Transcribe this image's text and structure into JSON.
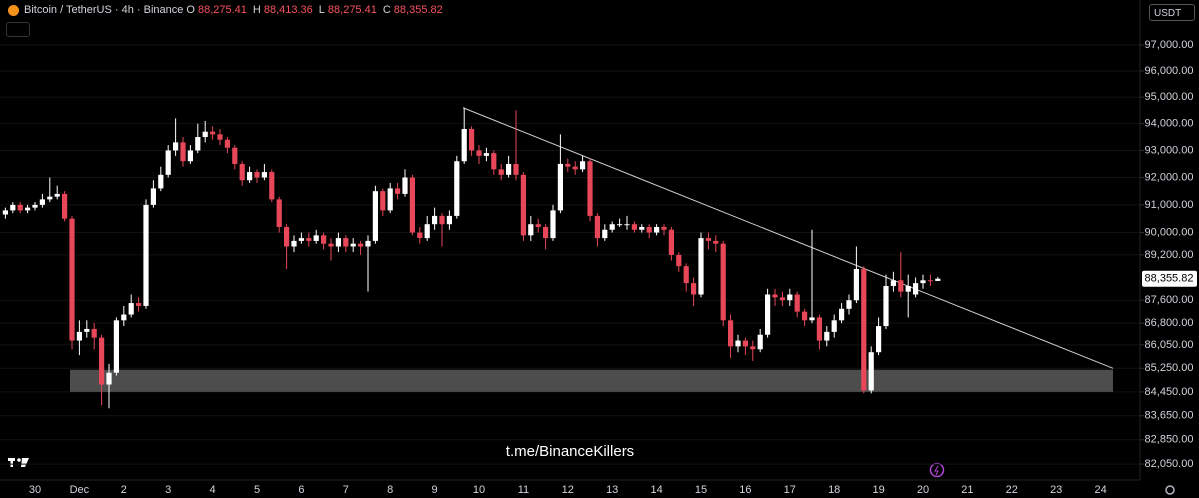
{
  "chart_data": {
    "type": "candlestick",
    "title": "Bitcoin / TetherUS · 4h · Binance",
    "ohlc_keys": [
      "O",
      "H",
      "L",
      "C"
    ],
    "ohlc_labels": [
      "88,275.41",
      "88,413.36",
      "88,275.41",
      "88,355.82"
    ],
    "currency": "USDT",
    "watermark": "t.me/BinanceKillers",
    "log_scale": true,
    "grid": true,
    "up_color": "#ffffff",
    "down_color": "#e8475a",
    "ylim": [
      81530,
      98760
    ],
    "yticks": [
      {
        "value": 97000,
        "label": "97,000.00"
      },
      {
        "value": 96000,
        "label": "96,000.00"
      },
      {
        "value": 95000,
        "label": "95,000.00"
      },
      {
        "value": 94000,
        "label": "94,000.00"
      },
      {
        "value": 93000,
        "label": "93,000.00"
      },
      {
        "value": 92000,
        "label": "92,000.00"
      },
      {
        "value": 91000,
        "label": "91,000.00"
      },
      {
        "value": 90000,
        "label": "90,000.00"
      },
      {
        "value": 89200,
        "label": "89,200.00"
      },
      {
        "value": 87600,
        "label": "87,600.00"
      },
      {
        "value": 86800,
        "label": "86,800.00"
      },
      {
        "value": 86050,
        "label": "86,050.00"
      },
      {
        "value": 85250,
        "label": "85,250.00"
      },
      {
        "value": 84450,
        "label": "84,450.00"
      },
      {
        "value": 83650,
        "label": "83,650.00"
      },
      {
        "value": 82850,
        "label": "82,850.00"
      },
      {
        "value": 82050,
        "label": "82,050.00"
      }
    ],
    "last_price": {
      "value": 88355.82,
      "label": "88,355.82"
    },
    "support_zone": {
      "low": 84450,
      "high": 85200
    },
    "trendline": {
      "start": 94600,
      "end": 85250
    },
    "categories": [
      null,
      null,
      null,
      null,
      "30",
      null,
      null,
      null,
      null,
      null,
      "Dec",
      null,
      null,
      null,
      null,
      null,
      "2",
      null,
      null,
      null,
      null,
      null,
      "3",
      null,
      null,
      null,
      null,
      null,
      "4",
      null,
      null,
      null,
      null,
      null,
      "5",
      null,
      null,
      null,
      null,
      null,
      "6",
      null,
      null,
      null,
      null,
      null,
      "7",
      null,
      null,
      null,
      null,
      null,
      "8",
      null,
      null,
      null,
      null,
      null,
      "9",
      null,
      null,
      null,
      null,
      null,
      "10",
      null,
      null,
      null,
      null,
      null,
      "11",
      null,
      null,
      null,
      null,
      null,
      "12",
      null,
      null,
      null,
      null,
      null,
      "13",
      null,
      null,
      null,
      null,
      null,
      "14",
      null,
      null,
      null,
      null,
      null,
      "15",
      null,
      null,
      null,
      null,
      null,
      "16",
      null,
      null,
      null,
      null,
      null,
      "17",
      null,
      null,
      null,
      null,
      null,
      "18",
      null,
      null,
      null,
      null,
      null,
      "19",
      null,
      null,
      null,
      null,
      null,
      "20",
      null,
      null,
      null,
      null,
      null,
      "21",
      null,
      null,
      null,
      null,
      null,
      "22",
      null,
      null,
      null,
      null,
      null,
      "23",
      null,
      null,
      null,
      null,
      null,
      "24"
    ],
    "open": [
      90650,
      90800,
      91000,
      90800,
      90900,
      91000,
      91200,
      91300,
      91400,
      90500,
      86200,
      86500,
      86600,
      86300,
      84700,
      85100,
      86900,
      87100,
      87500,
      87400,
      91000,
      91600,
      92100,
      93000,
      93300,
      92600,
      93000,
      93500,
      93700,
      93600,
      93400,
      93100,
      92500,
      91900,
      92200,
      92000,
      92200,
      91200,
      90200,
      89500,
      89700,
      89800,
      89700,
      89900,
      89600,
      89500,
      89800,
      89500,
      89600,
      89500,
      89700,
      91500,
      90800,
      91600,
      91400,
      92000,
      90000,
      89800,
      90300,
      90600,
      90300,
      90600,
      92600,
      93800,
      93000,
      92800,
      92900,
      92300,
      92100,
      92500,
      92100,
      89900,
      90300,
      90200,
      89800,
      90800,
      92500,
      92400,
      92300,
      92600,
      90600,
      89800,
      90100,
      90300,
      90300,
      90300,
      90100,
      90200,
      90000,
      90200,
      90100,
      89200,
      88800,
      88200,
      87800,
      89800,
      89700,
      89600,
      86900,
      86000,
      86200,
      86000,
      85900,
      86400,
      87800,
      87700,
      87600,
      87800,
      87200,
      86900,
      87000,
      86200,
      86500,
      86900,
      87300,
      87600,
      88700,
      84500,
      85800,
      86700,
      88100,
      88300,
      87900,
      87800,
      88200,
      88300,
      88275.41,
      null,
      null,
      null,
      null,
      null,
      null,
      null,
      null,
      null,
      null,
      null,
      null,
      null,
      null,
      null,
      null,
      null,
      null,
      null,
      null,
      null,
      null
    ],
    "high": [
      90900,
      91100,
      91100,
      91000,
      91100,
      91400,
      92000,
      91700,
      91500,
      90600,
      86900,
      86900,
      86800,
      86400,
      85400,
      87000,
      87400,
      87800,
      87700,
      91200,
      91900,
      92400,
      93200,
      94200,
      93500,
      93200,
      94000,
      94100,
      93900,
      93800,
      93500,
      93200,
      92600,
      92400,
      92300,
      92500,
      92300,
      91300,
      90300,
      89900,
      90000,
      90000,
      90100,
      90000,
      89800,
      90000,
      89900,
      89800,
      89700,
      89900,
      91700,
      91600,
      91800,
      91800,
      92300,
      92100,
      90200,
      90600,
      90900,
      90700,
      90800,
      92800,
      94600,
      93900,
      93200,
      93100,
      93000,
      92500,
      92800,
      94500,
      92200,
      90600,
      90500,
      90300,
      91000,
      93600,
      92700,
      92600,
      92800,
      92700,
      90700,
      90300,
      90400,
      90500,
      90600,
      90400,
      90300,
      90300,
      90300,
      90300,
      90200,
      89300,
      88900,
      88400,
      90000,
      90000,
      89900,
      89700,
      87100,
      86400,
      86300,
      86200,
      86600,
      88000,
      88000,
      87900,
      88000,
      87900,
      87300,
      90100,
      87100,
      86700,
      87100,
      87500,
      87800,
      89500,
      88800,
      86000,
      87000,
      88500,
      88600,
      89300,
      88500,
      88400,
      88500,
      88500,
      88413.36,
      null,
      null,
      null,
      null,
      null,
      null,
      null,
      null,
      null,
      null,
      null,
      null,
      null,
      null,
      null,
      null,
      null,
      null,
      null,
      null,
      null,
      null
    ],
    "low": [
      90500,
      90700,
      90700,
      90700,
      90800,
      90900,
      91100,
      91200,
      90400,
      85900,
      85700,
      86300,
      85900,
      84000,
      83900,
      85000,
      86700,
      87000,
      87200,
      87300,
      90900,
      91500,
      92000,
      92800,
      92400,
      92500,
      92900,
      93300,
      93400,
      93200,
      92900,
      92300,
      91700,
      91800,
      91800,
      91900,
      91100,
      90000,
      88700,
      89300,
      89600,
      89500,
      89600,
      89400,
      89000,
      89300,
      89300,
      89300,
      89200,
      87900,
      89600,
      90600,
      90700,
      91200,
      91300,
      89900,
      89600,
      89700,
      90100,
      89500,
      90100,
      90500,
      92500,
      92800,
      92500,
      92600,
      92100,
      91900,
      92000,
      91900,
      89700,
      89700,
      90000,
      89400,
      89700,
      90700,
      92200,
      92100,
      92200,
      90400,
      89500,
      89700,
      90000,
      90200,
      90100,
      90000,
      90000,
      89800,
      89900,
      89900,
      89000,
      88600,
      87900,
      87400,
      87700,
      89400,
      89300,
      86700,
      85600,
      85800,
      85700,
      85500,
      85800,
      86300,
      87400,
      87400,
      87400,
      87000,
      86700,
      86800,
      85900,
      86000,
      86300,
      86800,
      87100,
      87500,
      84400,
      84400,
      85700,
      86600,
      87900,
      87700,
      87000,
      87700,
      88000,
      88100,
      88275.41,
      null,
      null,
      null,
      null,
      null,
      null,
      null,
      null,
      null,
      null,
      null,
      null,
      null,
      null,
      null,
      null,
      null,
      null,
      null,
      null,
      null,
      null
    ],
    "close": [
      90800,
      91000,
      90800,
      90900,
      91000,
      91200,
      91300,
      91400,
      90500,
      86200,
      86500,
      86600,
      86300,
      84700,
      85100,
      86900,
      87100,
      87500,
      87400,
      91000,
      91600,
      92100,
      93000,
      93300,
      92600,
      93000,
      93500,
      93700,
      93600,
      93400,
      93100,
      92500,
      91900,
      92200,
      92000,
      92200,
      91200,
      90200,
      89500,
      89700,
      89800,
      89700,
      89900,
      89600,
      89500,
      89800,
      89500,
      89600,
      89500,
      89700,
      91500,
      90800,
      91600,
      91400,
      92000,
      90000,
      89800,
      90300,
      90600,
      90300,
      90600,
      92600,
      93800,
      93000,
      92800,
      92900,
      92300,
      92100,
      92500,
      92100,
      89900,
      90300,
      90200,
      89800,
      90800,
      92500,
      92400,
      92300,
      92600,
      90600,
      89800,
      90100,
      90300,
      90300,
      90300,
      90100,
      90200,
      90000,
      90200,
      90100,
      89200,
      88800,
      88200,
      87800,
      89800,
      89700,
      89600,
      86900,
      86000,
      86200,
      86000,
      85900,
      86400,
      87800,
      87700,
      87600,
      87800,
      87200,
      86900,
      87000,
      86200,
      86500,
      86900,
      87300,
      87600,
      88700,
      84500,
      85800,
      86700,
      88100,
      88300,
      87900,
      88100,
      88200,
      88300,
      88275.41,
      88355.82,
      null,
      null,
      null,
      null,
      null,
      null,
      null,
      null,
      null,
      null,
      null,
      null,
      null,
      null,
      null,
      null,
      null,
      null,
      null,
      null,
      null,
      null
    ]
  }
}
